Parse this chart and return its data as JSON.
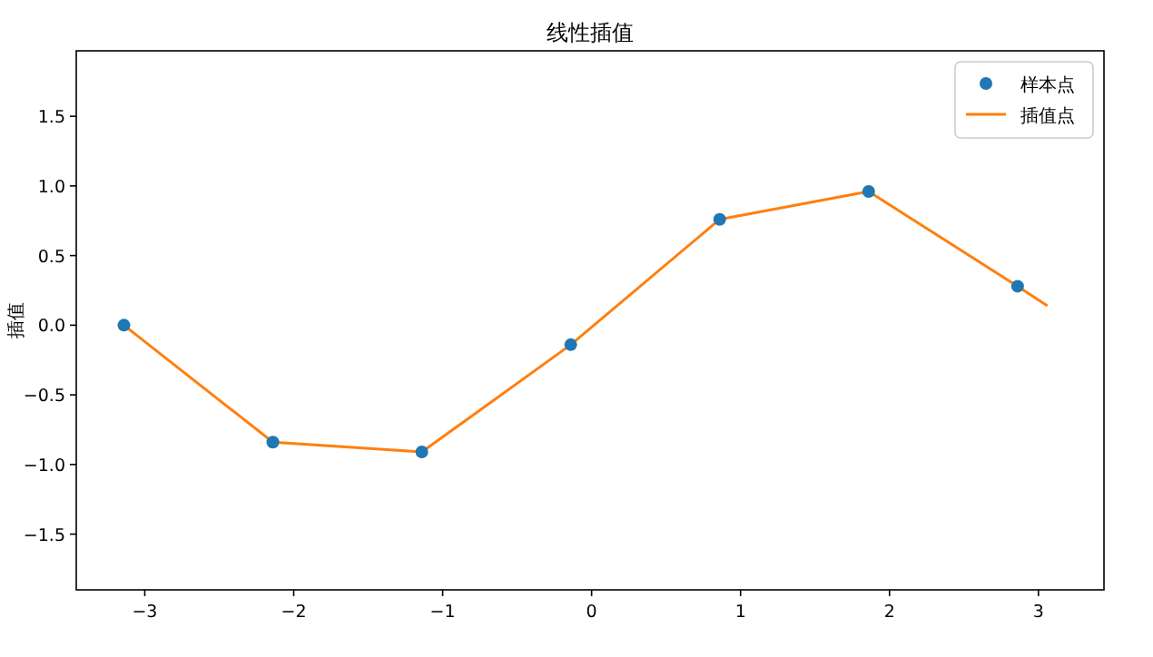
{
  "chart_data": {
    "type": "line",
    "title": "线性插值",
    "ylabel": "插值",
    "xlim": [
      -3.46,
      3.44
    ],
    "ylim": [
      -1.9,
      1.97
    ],
    "xticks": [
      {
        "value": -3,
        "label": "−3"
      },
      {
        "value": -2,
        "label": "−2"
      },
      {
        "value": -1,
        "label": "−1"
      },
      0,
      1,
      2,
      3
    ],
    "yticks": [
      {
        "value": -1.5,
        "label": "−1.5"
      },
      {
        "value": -1,
        "label": "−1.0"
      },
      {
        "value": -0.5,
        "label": "−0.5"
      },
      {
        "value": 0,
        "label": "0.0"
      },
      {
        "value": 0.5,
        "label": "0.5"
      },
      {
        "value": 1,
        "label": "1.0"
      },
      {
        "value": 1.5,
        "label": "1.5"
      }
    ],
    "legend": "top right",
    "series": [
      {
        "name": "样本点",
        "type": "scatter",
        "marker": "circle",
        "color": "#1f77b4",
        "x": [
          -3.14,
          -2.14,
          -1.14,
          -0.14,
          0.86,
          1.86,
          2.86
        ],
        "values": [
          0,
          -0.84,
          -0.91,
          -0.14,
          0.76,
          0.96,
          0.28
        ]
      },
      {
        "name": "插值点",
        "type": "line",
        "color": "#ff7f0e",
        "x": [
          -3.14,
          -2.14,
          -1.14,
          -0.14,
          0.86,
          1.86,
          2.86,
          3.06
        ],
        "values": [
          0,
          -0.84,
          -0.91,
          -0.14,
          0.76,
          0.96,
          0.28,
          0.14
        ]
      }
    ]
  }
}
